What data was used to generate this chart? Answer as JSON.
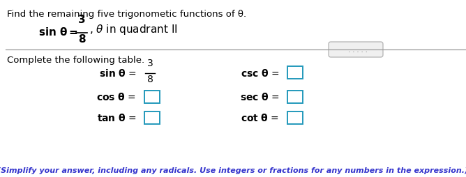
{
  "title": "Find the remaining five trigonometic functions of θ.",
  "table_label": "Complete the following table.",
  "footnote": "(Simplify your answer, including any radicals. Use integers or fractions for any numbers in the expression.)",
  "bg_color": "#ffffff",
  "text_color": "#000000",
  "blue_color": "#3333cc",
  "box_stroke": "#2299bb",
  "sep_color": "#999999",
  "button_dots": "  . . . . .",
  "figw": 6.68,
  "figh": 2.55,
  "dpi": 100
}
